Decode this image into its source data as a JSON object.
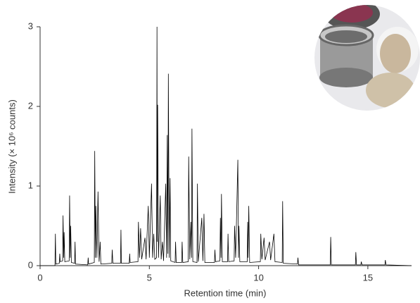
{
  "chart_data": {
    "type": "line",
    "xlabel": "Retention time (min)",
    "ylabel": "Intensity (× 10⁶ counts)",
    "xlim": [
      0,
      17
    ],
    "xticks": [
      0,
      5,
      10,
      15
    ],
    "ylim": [
      0,
      3
    ],
    "yticks": [
      0,
      1,
      2,
      3
    ],
    "color": "#000000",
    "x": [
      0,
      0.68,
      0.7,
      0.72,
      0.88,
      0.9,
      0.92,
      1.03,
      1.05,
      1.08,
      1.1,
      1.13,
      1.33,
      1.35,
      1.38,
      1.4,
      1.43,
      1.58,
      1.6,
      1.62,
      2.18,
      2.2,
      2.22,
      2.48,
      2.5,
      2.53,
      2.55,
      2.6,
      2.65,
      2.7,
      2.75,
      2.78,
      3.28,
      3.3,
      3.33,
      3.68,
      3.7,
      3.72,
      4.08,
      4.1,
      4.12,
      4.48,
      4.5,
      4.55,
      4.6,
      4.65,
      4.8,
      4.85,
      4.95,
      5.0,
      5.1,
      5.15,
      5.2,
      5.25,
      5.33,
      5.35,
      5.36,
      5.38,
      5.42,
      5.5,
      5.54,
      5.6,
      5.65,
      5.75,
      5.79,
      5.82,
      5.85,
      5.87,
      5.91,
      5.95,
      5.98,
      6.18,
      6.2,
      6.23,
      6.48,
      6.5,
      6.53,
      6.78,
      6.8,
      6.85,
      6.9,
      6.93,
      6.95,
      6.99,
      7.18,
      7.2,
      7.24,
      7.4,
      7.45,
      7.5,
      7.54,
      7.98,
      8.0,
      8.03,
      8.23,
      8.25,
      8.28,
      8.3,
      8.34,
      8.58,
      8.6,
      8.63,
      8.88,
      8.9,
      8.95,
      9.05,
      9.08,
      9.1,
      9.14,
      9.48,
      9.5,
      9.52,
      9.55,
      9.59,
      10.08,
      10.1,
      10.15,
      10.25,
      10.3,
      10.5,
      10.55,
      10.7,
      10.75,
      11.08,
      11.1,
      11.13,
      11.78,
      11.8,
      11.83,
      13.28,
      13.3,
      13.33,
      14.43,
      14.45,
      14.48,
      14.68,
      14.7,
      14.73,
      15.78,
      15.8,
      15.83,
      17
    ],
    "values": [
      0,
      0,
      0.4,
      0.02,
      0.03,
      0.15,
      0.05,
      0.06,
      0.63,
      0.1,
      0.42,
      0.05,
      0.06,
      0.88,
      0.1,
      0.5,
      0.04,
      0.03,
      0.3,
      0.02,
      0.01,
      0.1,
      0.02,
      0.04,
      1.44,
      0.1,
      0.75,
      0.1,
      0.93,
      0.05,
      0.3,
      0.02,
      0.03,
      0.2,
      0.03,
      0.03,
      0.45,
      0.03,
      0.03,
      0.15,
      0.04,
      0.05,
      0.55,
      0.1,
      0.47,
      0.08,
      0.35,
      0.08,
      0.75,
      0.1,
      1.03,
      0.1,
      0.4,
      0.08,
      0.1,
      3.0,
      0.3,
      2.02,
      0.1,
      0.88,
      0.08,
      0.3,
      0.06,
      1.03,
      0.1,
      1.64,
      0.15,
      2.41,
      0.1,
      1.1,
      0.06,
      0.04,
      0.3,
      0.04,
      0.04,
      0.3,
      0.04,
      0.05,
      1.37,
      0.08,
      0.55,
      0.1,
      1.72,
      0.05,
      0.04,
      1.03,
      0.05,
      0.6,
      0.06,
      0.65,
      0.04,
      0.04,
      0.2,
      0.05,
      0.06,
      0.6,
      0.1,
      0.9,
      0.05,
      0.05,
      0.4,
      0.05,
      0.06,
      0.5,
      0.1,
      1.33,
      0.1,
      0.5,
      0.05,
      0.05,
      0.55,
      0.1,
      0.75,
      0.04,
      0.05,
      0.4,
      0.08,
      0.35,
      0.07,
      0.3,
      0.07,
      0.4,
      0.05,
      0.04,
      0.81,
      0.03,
      0.02,
      0.1,
      0.01,
      0.01,
      0.36,
      0.01,
      0.01,
      0.17,
      0.01,
      0.01,
      0.05,
      0.01,
      0.01,
      0.07,
      0.01,
      0
    ]
  }
}
